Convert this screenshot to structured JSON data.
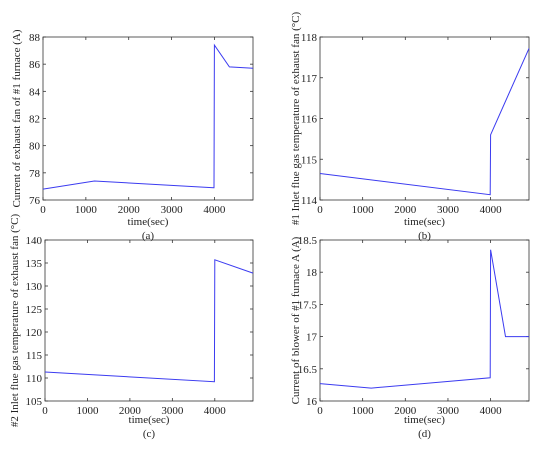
{
  "figure": {
    "background": "#ffffff",
    "line_color": "#3b3bf0",
    "axis_color": "#333333"
  },
  "chart_data": [
    {
      "type": "line",
      "panel": "(a)",
      "xlabel": "time(sec)",
      "ylabel": "Current of exhaust fan of #1 furnace (A)",
      "xlim": [
        0,
        4900
      ],
      "ylim": [
        76,
        88
      ],
      "x_ticks": [
        "0",
        "1000",
        "2000",
        "3000",
        "4000"
      ],
      "y_ticks": [
        "76",
        "78",
        "80",
        "82",
        "84",
        "86",
        "88"
      ],
      "grid": false,
      "series": [
        {
          "x": [
            0,
            1200,
            3980,
            3990,
            4000,
            4350,
            4900
          ],
          "y": [
            76.8,
            77.4,
            76.9,
            76.9,
            87.4,
            85.8,
            85.7
          ]
        }
      ]
    },
    {
      "type": "line",
      "panel": "(b)",
      "xlabel": "time(sec)",
      "ylabel": "#1 Inlet flue gas temperature of exhaust fan (°C)",
      "xlim": [
        0,
        4900
      ],
      "ylim": [
        114,
        118
      ],
      "x_ticks": [
        "0",
        "1000",
        "2000",
        "3000",
        "4000"
      ],
      "y_ticks": [
        "114",
        "115",
        "116",
        "117",
        "118"
      ],
      "grid": false,
      "series": [
        {
          "x": [
            0,
            3990,
            4000,
            4900
          ],
          "y": [
            114.65,
            114.13,
            115.6,
            117.72
          ]
        }
      ]
    },
    {
      "type": "line",
      "panel": "(c)",
      "xlabel": "time(sec)",
      "ylabel": "#2 Inlet flue gas temperature of exhaust fan (°C)",
      "xlim": [
        0,
        4900
      ],
      "ylim": [
        105,
        140
      ],
      "x_ticks": [
        "0",
        "1000",
        "2000",
        "3000",
        "4000"
      ],
      "y_ticks": [
        "105",
        "110",
        "115",
        "120",
        "125",
        "130",
        "135",
        "140"
      ],
      "grid": false,
      "series": [
        {
          "x": [
            0,
            3990,
            4000,
            4900
          ],
          "y": [
            111.3,
            109.2,
            135.7,
            132.8
          ]
        }
      ]
    },
    {
      "type": "line",
      "panel": "(d)",
      "xlabel": "time(sec)",
      "ylabel": "Current of blower of #1 furnace A (A)",
      "xlim": [
        0,
        4900
      ],
      "ylim": [
        16,
        18.5
      ],
      "x_ticks": [
        "0",
        "1000",
        "2000",
        "3000",
        "4000"
      ],
      "y_ticks": [
        "16",
        "16.5",
        "17",
        "17.5",
        "18",
        "18.5"
      ],
      "grid": false,
      "series": [
        {
          "x": [
            0,
            1200,
            3990,
            4000,
            4350,
            4900
          ],
          "y": [
            16.27,
            16.2,
            16.36,
            18.35,
            17.0,
            17.0
          ]
        }
      ]
    }
  ]
}
